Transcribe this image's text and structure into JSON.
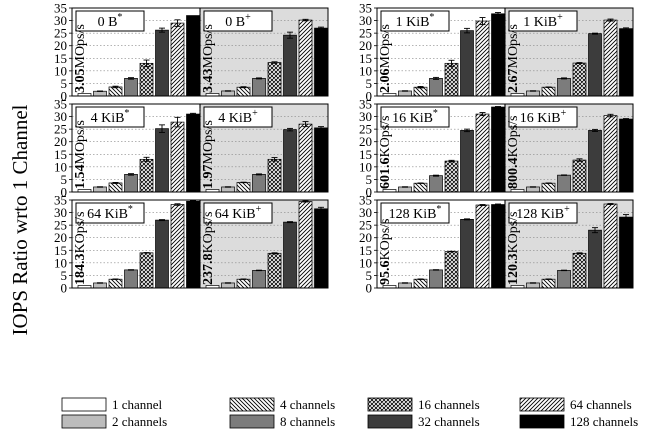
{
  "ylabel": "IOPS Ratio wrto 1 Channel",
  "chart_data": {
    "type": "bar",
    "ylabel": "IOPS Ratio wrto 1 Channel",
    "ylim": [
      0,
      35
    ],
    "yticks": [
      0,
      5,
      10,
      15,
      20,
      25,
      30,
      35
    ],
    "grid": true,
    "legend_position": "bottom",
    "series": [
      {
        "name": "1 channel",
        "pattern": "white"
      },
      {
        "name": "2 channels",
        "pattern": "light-gray"
      },
      {
        "name": "4 channels",
        "pattern": "backslash-hatch"
      },
      {
        "name": "8 channels",
        "pattern": "gray"
      },
      {
        "name": "16 channels",
        "pattern": "crosshatch"
      },
      {
        "name": "32 channels",
        "pattern": "dark-gray"
      },
      {
        "name": "64 channels",
        "pattern": "slash-hatch"
      },
      {
        "name": "128 channels",
        "pattern": "black"
      }
    ],
    "panels": [
      {
        "title_main": "0 B",
        "title_sup": "*",
        "shaded": false,
        "base_value": "3.05",
        "base_unit": "MOps/s",
        "values": [
          1,
          1.9,
          3.6,
          7,
          13,
          26.2,
          29,
          32
        ],
        "errors": [
          0,
          0.1,
          0.3,
          0.3,
          1.3,
          0.8,
          1.3,
          0
        ]
      },
      {
        "title_main": "0 B",
        "title_sup": "+",
        "shaded": true,
        "base_value": "3.43",
        "base_unit": "MOps/s",
        "values": [
          1,
          2,
          3.5,
          7,
          13.3,
          24.2,
          30.2,
          27
        ],
        "errors": [
          0,
          0.1,
          0.2,
          0.2,
          0.3,
          1.2,
          0.3,
          0.4
        ]
      },
      {
        "title_main": "1 KiB",
        "title_sup": "*",
        "shaded": false,
        "base_value": "2.06",
        "base_unit": "MOps/s",
        "values": [
          1,
          2,
          3.5,
          7,
          13,
          26,
          29.8,
          32.7
        ],
        "errors": [
          0,
          0.1,
          0.3,
          0.4,
          1.2,
          0.9,
          1.4,
          0.5
        ]
      },
      {
        "title_main": "1 KiB",
        "title_sup": "+",
        "shaded": true,
        "base_value": "2.67",
        "base_unit": "MOps/s",
        "values": [
          1,
          2,
          3.5,
          7,
          13.1,
          24.8,
          30.2,
          26.8
        ],
        "errors": [
          0,
          0.1,
          0.1,
          0.2,
          0.2,
          0.2,
          0.4,
          0.3
        ]
      },
      {
        "title_main": "4 KiB",
        "title_sup": "*",
        "shaded": false,
        "base_value": "1.54",
        "base_unit": "MOps/s",
        "values": [
          1,
          2,
          3.6,
          7,
          13,
          25.2,
          27.8,
          31
        ],
        "errors": [
          0,
          0.1,
          0.2,
          0.3,
          0.8,
          1.5,
          1.9,
          0.3
        ]
      },
      {
        "title_main": "4 KiB",
        "title_sup": "+",
        "shaded": true,
        "base_value": "1.97",
        "base_unit": "MOps/s",
        "values": [
          1,
          2,
          3.8,
          7,
          13,
          24.8,
          27,
          25.5
        ],
        "errors": [
          0,
          0.1,
          0.1,
          0.2,
          0.7,
          0.5,
          1,
          0.5
        ]
      },
      {
        "title_main": "16 KiB",
        "title_sup": "*",
        "shaded": false,
        "base_value": "601.6",
        "base_unit": "KOps/s",
        "values": [
          1,
          2,
          3.5,
          6.5,
          12.3,
          24.5,
          31,
          33.8
        ],
        "errors": [
          0,
          0.1,
          0.1,
          0.2,
          0.3,
          0.5,
          0.6,
          0.2
        ]
      },
      {
        "title_main": "16 KiB",
        "title_sup": "+",
        "shaded": true,
        "base_value": "800.4",
        "base_unit": "KOps/s",
        "values": [
          1,
          2,
          3.5,
          6.7,
          12.7,
          24.5,
          30.4,
          29
        ],
        "errors": [
          0,
          0.1,
          0.1,
          0.1,
          0.5,
          0.4,
          0.5,
          0.2
        ]
      },
      {
        "title_main": "64 KiB",
        "title_sup": "*",
        "shaded": false,
        "base_value": "184.3",
        "base_unit": "KOps/s",
        "values": [
          1,
          2,
          3.5,
          7.2,
          14,
          27,
          33.2,
          34.5
        ],
        "errors": [
          0,
          0.1,
          0.1,
          0.1,
          0.1,
          0.2,
          0.3,
          0.2
        ]
      },
      {
        "title_main": "64 KiB",
        "title_sup": "+",
        "shaded": true,
        "base_value": "237.8",
        "base_unit": "KOps/s",
        "values": [
          1,
          2,
          3.5,
          7,
          13.8,
          26.2,
          34.4,
          31.5
        ],
        "errors": [
          0,
          0.1,
          0.1,
          0.1,
          0.2,
          0.2,
          0.2,
          0.6
        ]
      },
      {
        "title_main": "128 KiB",
        "title_sup": "*",
        "shaded": false,
        "base_value": "95.6",
        "base_unit": "KOps/s",
        "values": [
          1,
          2,
          3.5,
          7.2,
          14.5,
          27.3,
          33,
          33.2
        ],
        "errors": [
          0,
          0.1,
          0.1,
          0.1,
          0.1,
          0.2,
          0.2,
          0.2
        ]
      },
      {
        "title_main": "128 KiB",
        "title_sup": "+",
        "shaded": true,
        "base_value": "120.3",
        "base_unit": "KOps/s",
        "values": [
          1,
          2,
          3.5,
          7,
          13.8,
          23,
          33.4,
          28.2
        ],
        "errors": [
          0,
          0.1,
          0.1,
          0.1,
          0.2,
          1,
          0.2,
          1
        ]
      }
    ]
  },
  "colors": {
    "shaded_background": "#dcdcdc",
    "grid": "#888888",
    "bar_white": "#ffffff",
    "bar_light": "#bcbcbc",
    "bar_gray": "#7c7c7c",
    "bar_dark": "#3c3c3c",
    "bar_black": "#000000"
  }
}
